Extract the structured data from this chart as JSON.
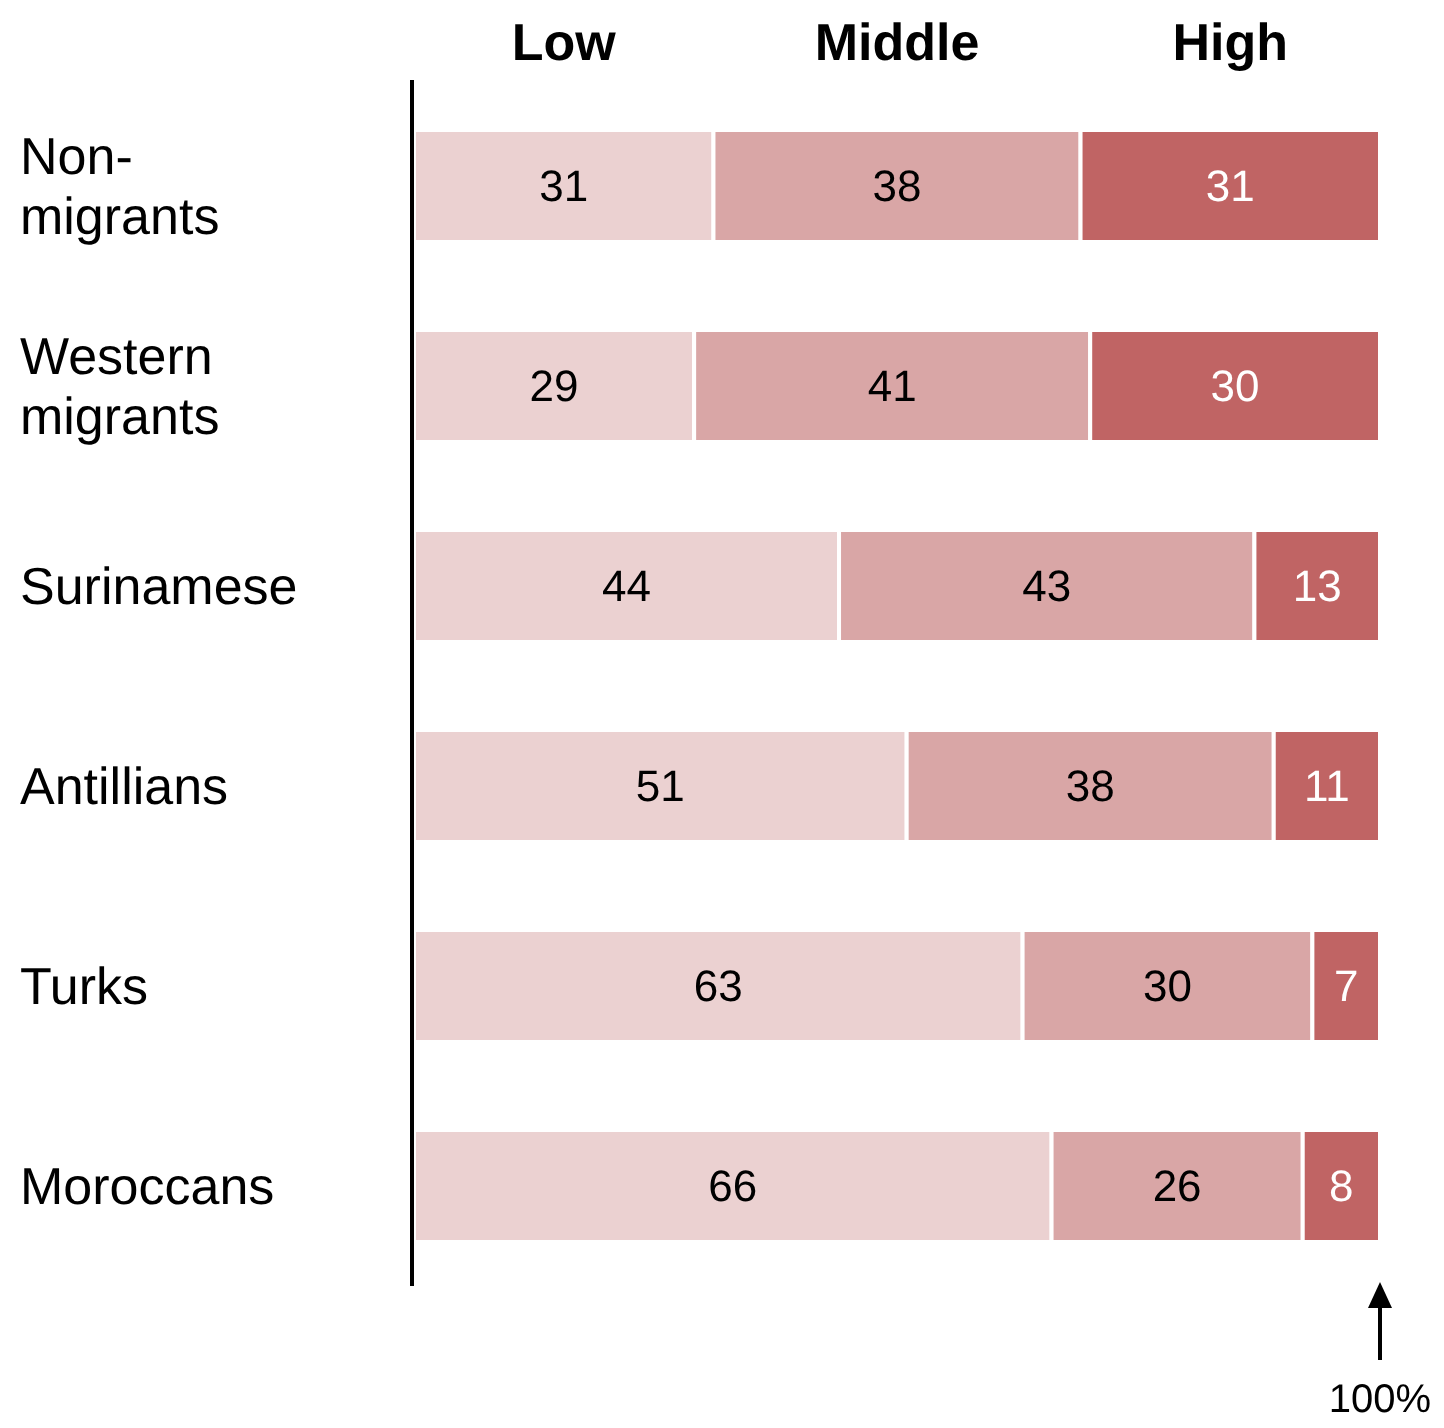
{
  "chart_data": {
    "type": "bar",
    "orientation": "horizontal",
    "stacked": true,
    "data_labels": true,
    "legend": "top",
    "categories": [
      "Non-migrants",
      "Western migrants",
      "Surinamese",
      "Antillians",
      "Turks",
      "Moroccans"
    ],
    "series": [
      {
        "name": "Low",
        "color": "#ebd1d1",
        "values": [
          31,
          29,
          44,
          51,
          63,
          66
        ]
      },
      {
        "name": "Middle",
        "color": "#d9a6a6",
        "values": [
          38,
          41,
          43,
          38,
          30,
          26
        ]
      },
      {
        "name": "High",
        "color": "#c06464",
        "values": [
          31,
          30,
          13,
          11,
          7,
          8
        ]
      }
    ],
    "annotations": [
      "100%"
    ]
  }
}
